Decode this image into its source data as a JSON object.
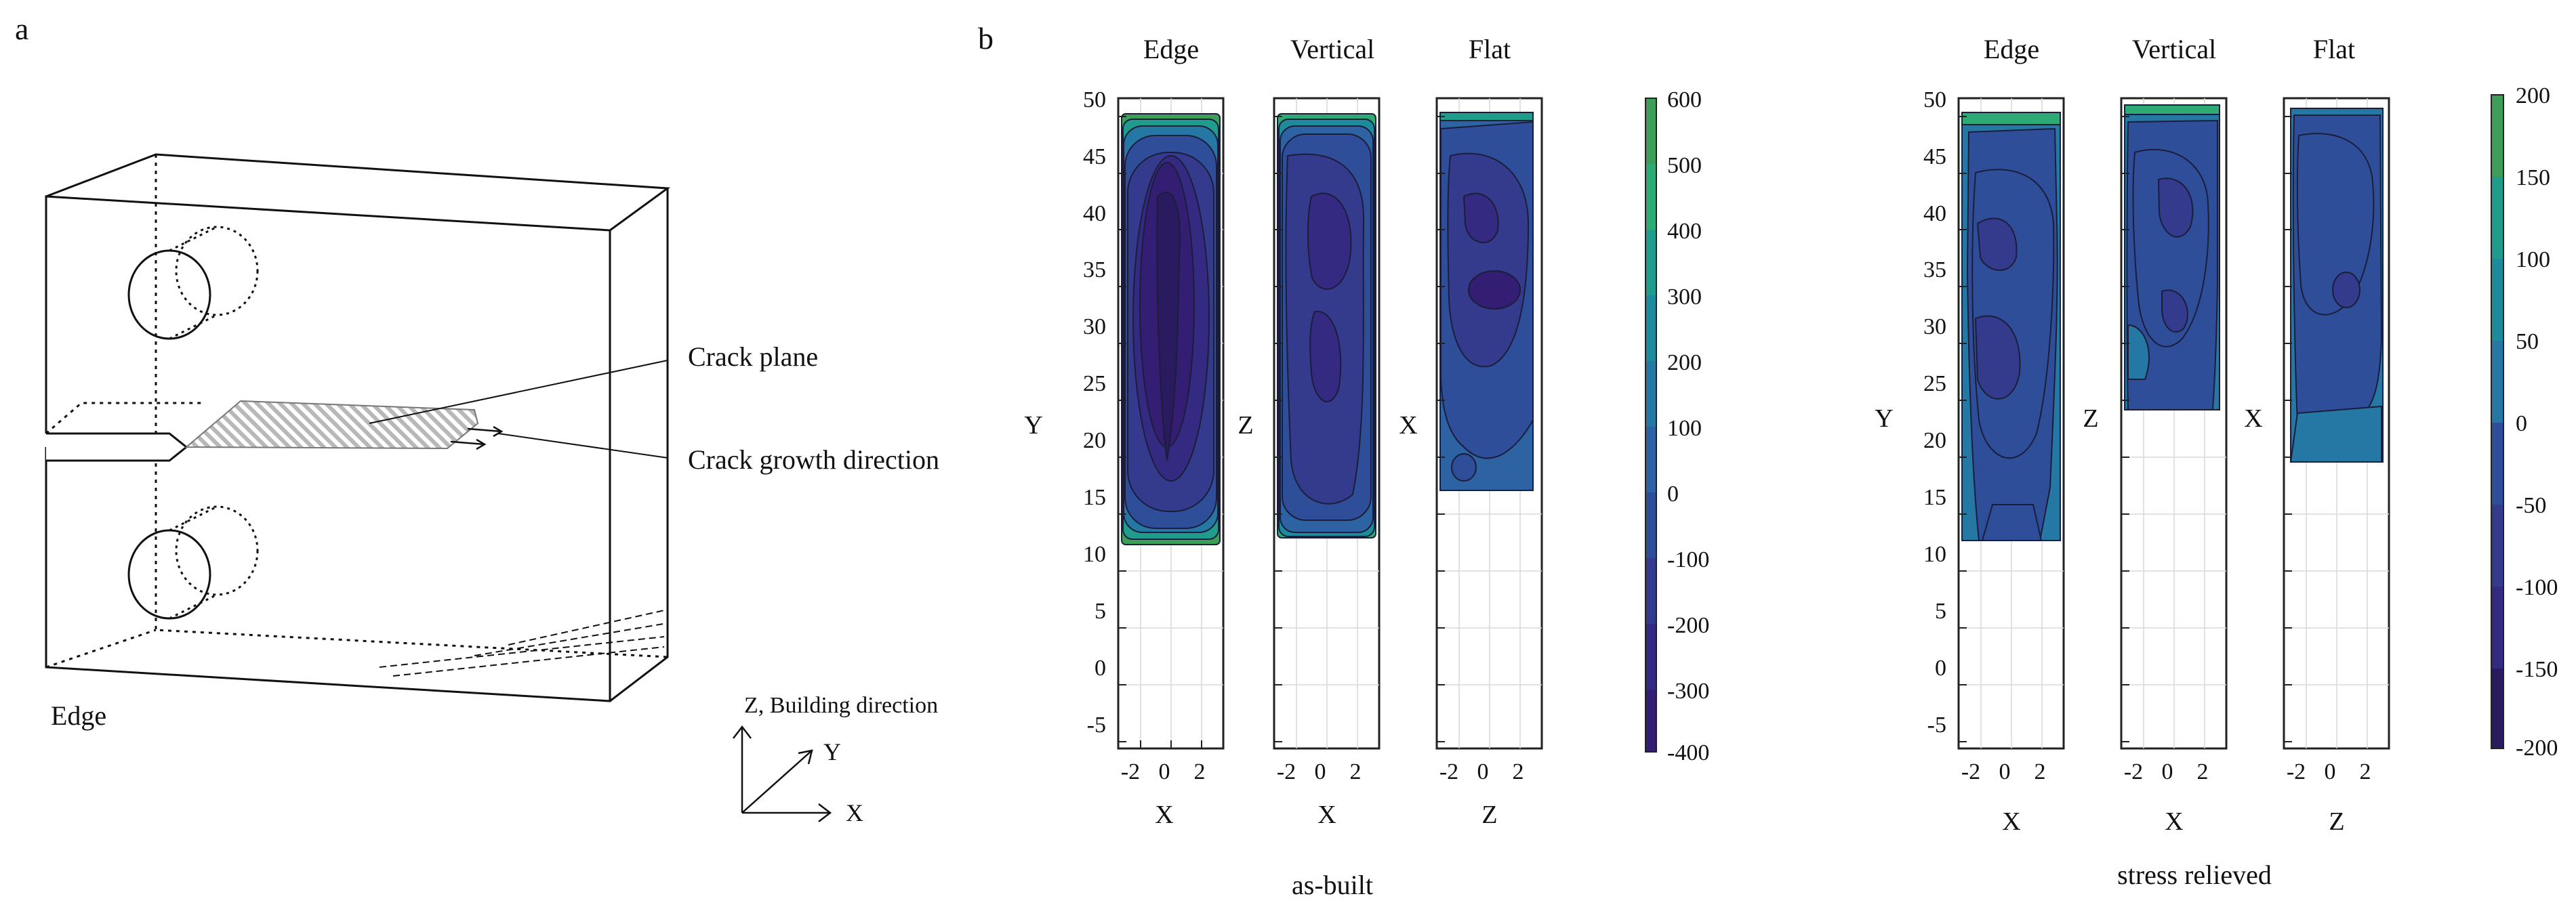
{
  "panel_a": {
    "letter": "a",
    "crack_plane_label": "Crack plane",
    "crack_growth_label": "Crack growth direction",
    "edge_label": "Edge",
    "axes": {
      "z": "Z, Building direction",
      "y": "Y",
      "x": "X"
    }
  },
  "panel_b": {
    "letter": "b",
    "colors": {
      "c_neg400": "#2a1a5f",
      "c_neg300": "#331e74",
      "c_neg200": "#352a82",
      "c_neg100": "#343b8d",
      "c_0": "#2f4e99",
      "c_100": "#2d62a3",
      "c_200": "#2478a3",
      "c_300": "#1e8b9c",
      "c_400": "#1f9c8c",
      "c_500": "#2eaa74",
      "c_600": "#3f9d5a"
    },
    "groups": [
      {
        "caption": "as-built",
        "colorbar": {
          "ticks": [
            "600",
            "500",
            "400",
            "300",
            "200",
            "100",
            "0",
            "-100",
            "-200",
            "-300",
            "-400"
          ]
        },
        "maps": [
          {
            "title": "Edge",
            "ylabel": "Y",
            "xlabel": "X",
            "xticks": [
              "-2",
              "0",
              "2"
            ],
            "yticks": [
              "50",
              "45",
              "40",
              "35",
              "30",
              "25",
              "20",
              "15",
              "10",
              "5",
              "0",
              "-5"
            ]
          },
          {
            "title": "Vertical",
            "ylabel": "Z",
            "xlabel": "X",
            "xticks": [
              "-2",
              "0",
              "2"
            ]
          },
          {
            "title": "Flat",
            "ylabel": "X",
            "xlabel": "Z",
            "xticks": [
              "-2",
              "0",
              "2"
            ]
          }
        ]
      },
      {
        "caption": "stress relieved",
        "colorbar": {
          "ticks": [
            "200",
            "150",
            "100",
            "50",
            "0",
            "-50",
            "-100",
            "-150",
            "-200"
          ]
        },
        "maps": [
          {
            "title": "Edge",
            "ylabel": "Y",
            "xlabel": "X",
            "xticks": [
              "-2",
              "0",
              "2"
            ],
            "yticks": [
              "50",
              "45",
              "40",
              "35",
              "30",
              "25",
              "20",
              "15",
              "10",
              "5",
              "0",
              "-5"
            ]
          },
          {
            "title": "Vertical",
            "ylabel": "Z",
            "xlabel": "X",
            "xticks": [
              "-2",
              "0",
              "2"
            ]
          },
          {
            "title": "Flat",
            "ylabel": "X",
            "xlabel": "Z",
            "xticks": [
              "-2",
              "0",
              "2"
            ]
          }
        ]
      }
    ]
  }
}
